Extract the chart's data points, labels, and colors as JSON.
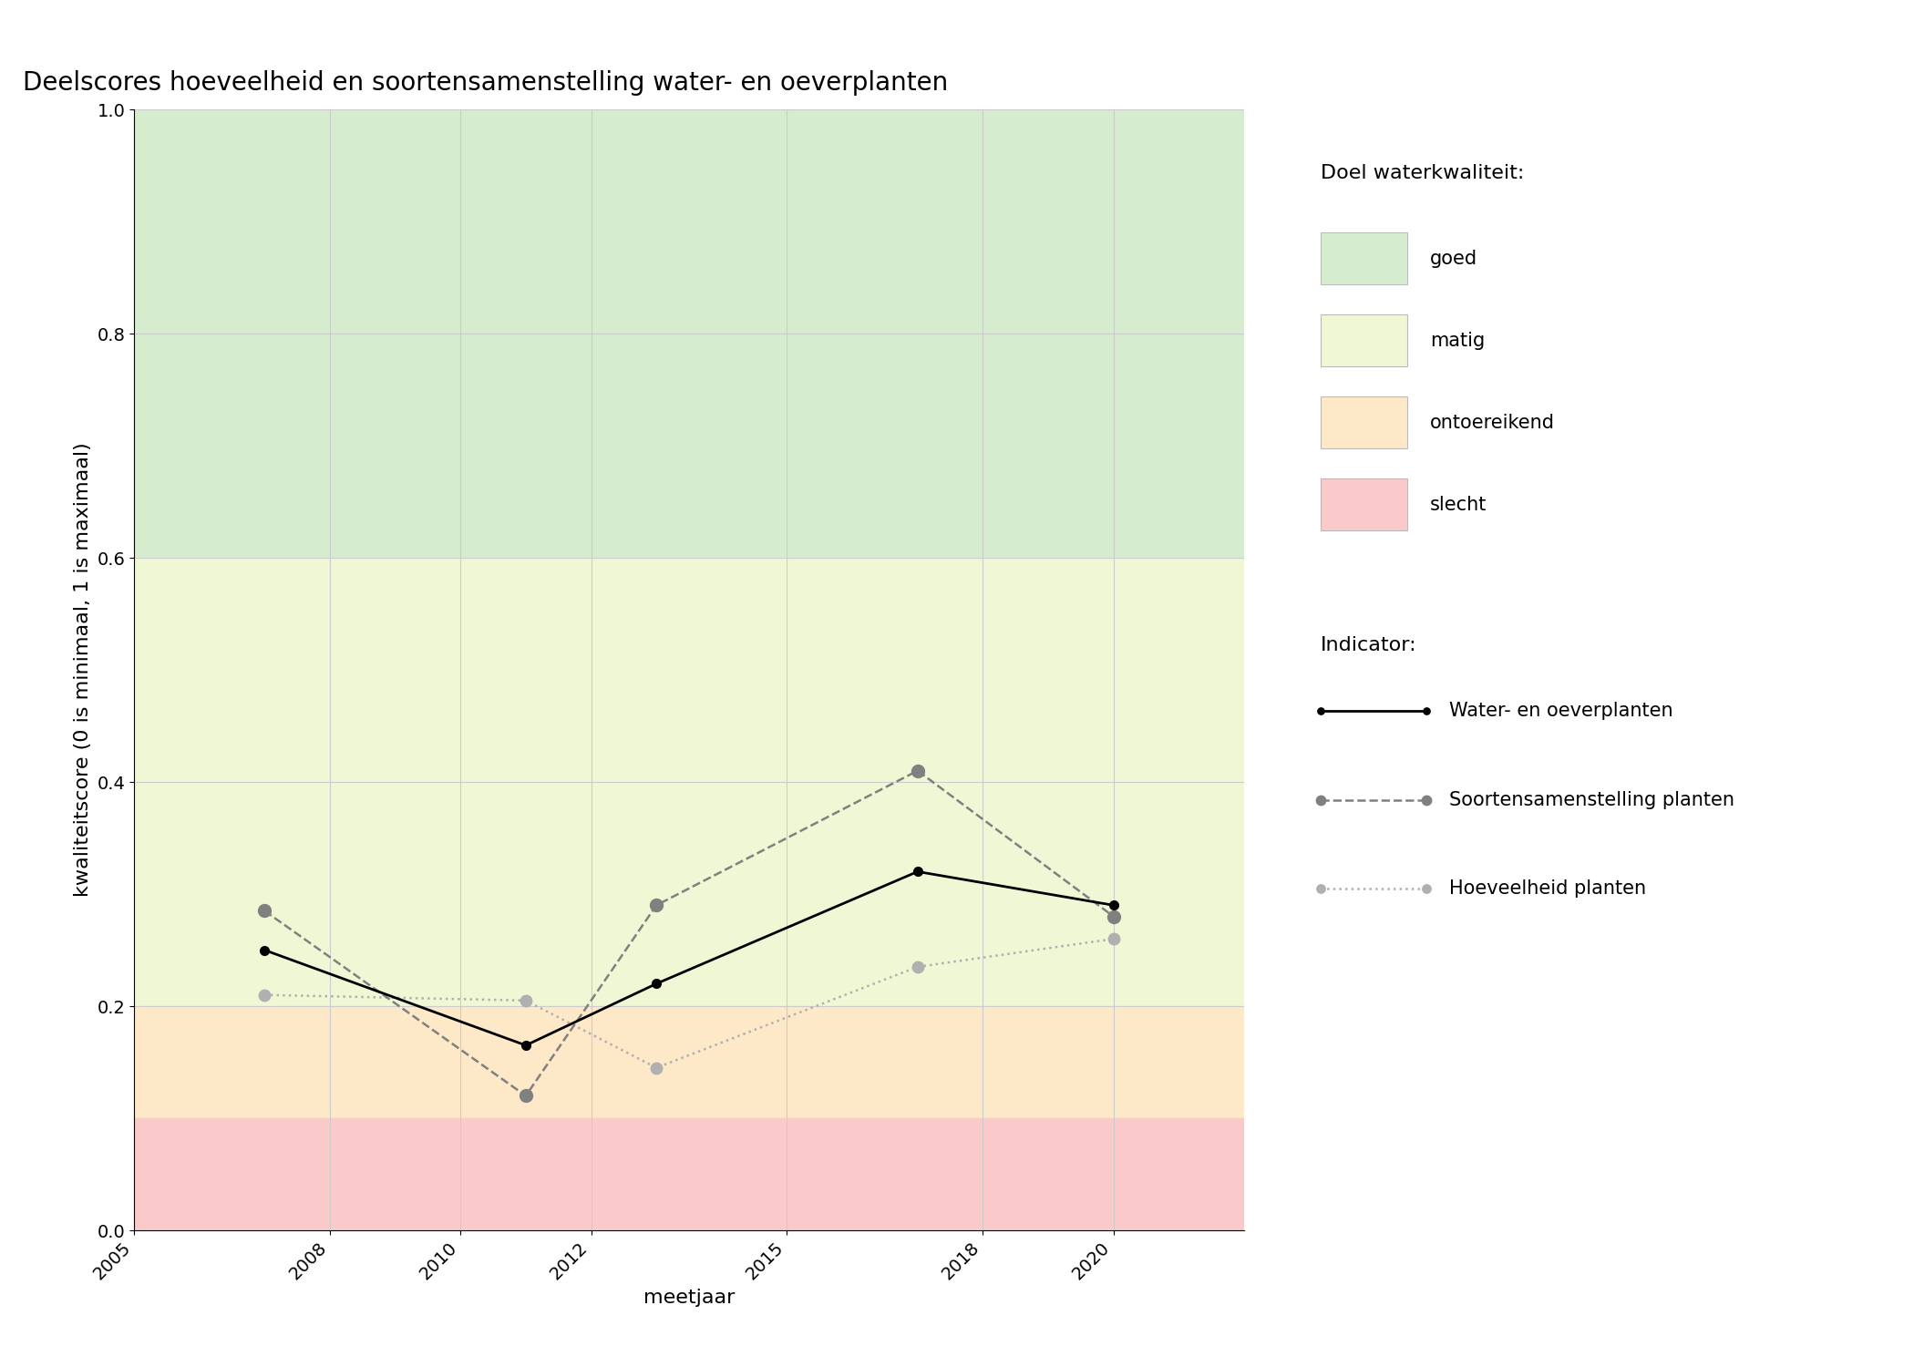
{
  "title": "Deelscores hoeveelheid en soortensamenstelling water- en oeverplanten",
  "xlabel": "meetjaar",
  "ylabel": "kwaliteitscore (0 is minimaal, 1 is maximaal)",
  "xlim": [
    2005,
    2022
  ],
  "ylim": [
    0.0,
    1.0
  ],
  "xticks": [
    2005,
    2008,
    2010,
    2012,
    2015,
    2018,
    2020
  ],
  "yticks": [
    0.0,
    0.2,
    0.4,
    0.6,
    0.8,
    1.0
  ],
  "background_color": "#ffffff",
  "bg_zones": [
    {
      "ymin": 0.6,
      "ymax": 1.0,
      "color": "#d5edce",
      "label": "goed"
    },
    {
      "ymin": 0.2,
      "ymax": 0.6,
      "color": "#f0f7d5",
      "label": "matig"
    },
    {
      "ymin": 0.1,
      "ymax": 0.2,
      "color": "#fde8c8",
      "label": "ontoereikend"
    },
    {
      "ymin": 0.0,
      "ymax": 0.1,
      "color": "#fac9c9",
      "label": "slecht"
    }
  ],
  "series_water_oever": {
    "years": [
      2007,
      2011,
      2013,
      2017,
      2020
    ],
    "values": [
      0.25,
      0.165,
      0.22,
      0.32,
      0.29
    ],
    "color": "#000000",
    "linestyle": "solid",
    "linewidth": 2.0,
    "marker": "o",
    "markersize": 7,
    "label": "Water- en oeverplanten"
  },
  "series_soortensamenstelling": {
    "years": [
      2007,
      2011,
      2013,
      2017,
      2020
    ],
    "values": [
      0.285,
      0.12,
      0.29,
      0.41,
      0.28
    ],
    "color": "#808080",
    "linestyle": "dashed",
    "linewidth": 1.8,
    "marker": "o",
    "markersize": 10,
    "label": "Soortensamenstelling planten"
  },
  "series_hoeveelheid": {
    "years": [
      2007,
      2011,
      2013,
      2017,
      2020
    ],
    "values": [
      0.21,
      0.205,
      0.145,
      0.235,
      0.26
    ],
    "color": "#b0b0b0",
    "linestyle": "dotted",
    "linewidth": 1.8,
    "marker": "o",
    "markersize": 9,
    "label": "Hoeveelheid planten"
  },
  "legend_kwaliteit_title": "Doel waterkwaliteit:",
  "legend_indicator_title": "Indicator:",
  "grid_color": "#cccccc",
  "grid_linewidth": 0.8,
  "title_fontsize": 20,
  "axis_label_fontsize": 16,
  "tick_fontsize": 14,
  "legend_fontsize": 15,
  "legend_title_fontsize": 16
}
